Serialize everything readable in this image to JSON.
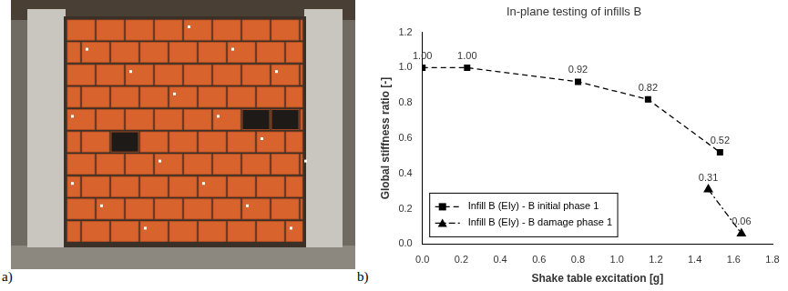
{
  "panel_labels": [
    "a)",
    "b)"
  ],
  "chart_data": {
    "type": "line",
    "title": "In-plane testing of infills B",
    "x_label": "Shake table excitation [g]",
    "y_label": "Global stiffness ratio [-]",
    "xlim": [
      0,
      1.8
    ],
    "xticks": [
      {
        "value": 0,
        "label": "0.0"
      },
      0.2,
      0.4,
      0.6,
      0.8,
      {
        "value": 1,
        "label": "1.0"
      },
      1.2,
      1.4,
      1.6,
      1.8
    ],
    "ylim": [
      0,
      1.2
    ],
    "yticks": [
      {
        "value": 0,
        "label": "0.0"
      },
      0.2,
      0.4,
      0.6,
      0.8,
      {
        "value": 1,
        "label": "1.0"
      },
      1.2
    ],
    "grid": false,
    "legend": "lower left",
    "data_labels": true,
    "series": [
      {
        "name": "Infill B (EIy) - B initial phase 1",
        "color": "#000000",
        "marker": "square",
        "line_style": "dashed",
        "x": [
          0,
          0.23,
          0.8,
          1.16,
          1.53
        ],
        "values": [
          1,
          1,
          0.92,
          0.82,
          0.52
        ],
        "value_labels": [
          "1.00",
          "1.00",
          "0.92",
          "0.82",
          "0.52"
        ]
      },
      {
        "name": "Infill B (EIy) - B damage phase 1",
        "color": "#000000",
        "marker": "triangle",
        "line_style": "dashdot",
        "x": [
          1.47,
          1.64
        ],
        "values": [
          0.31,
          0.06
        ],
        "value_labels": [
          "0.31",
          "0.06"
        ]
      }
    ]
  }
}
